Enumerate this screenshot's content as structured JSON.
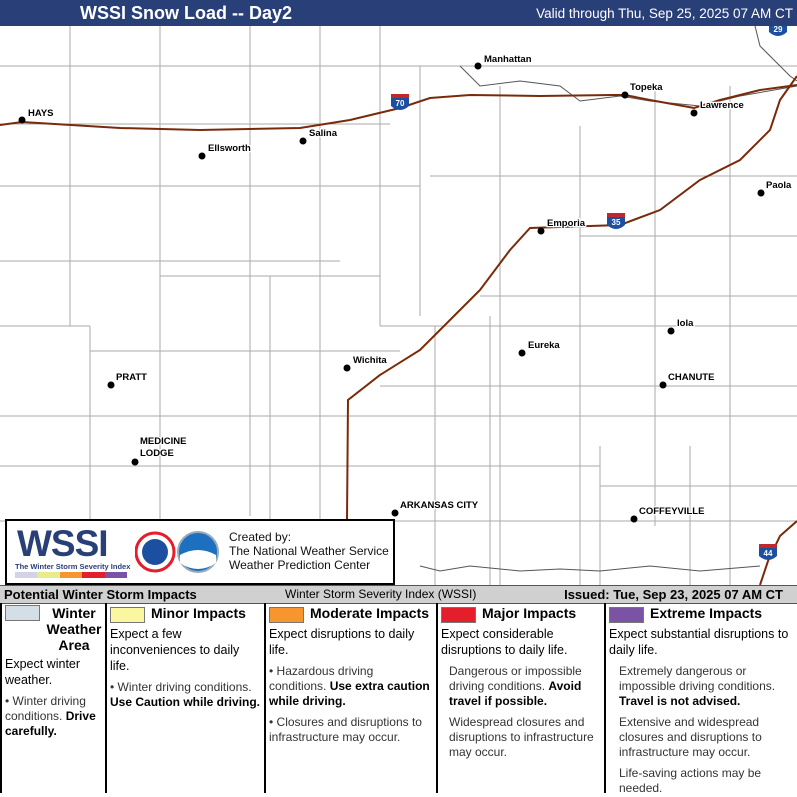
{
  "header": {
    "title": "WSSI Snow Load -- Day2",
    "valid": "Valid through Thu, Sep 25, 2025 07 AM CT"
  },
  "map": {
    "cities": [
      {
        "name": "HAYS"
      },
      {
        "name": "Manhattan"
      },
      {
        "name": "Topeka"
      },
      {
        "name": "Lawrence"
      },
      {
        "name": "Salina"
      },
      {
        "name": "Ellsworth"
      },
      {
        "name": "Paola"
      },
      {
        "name": "Emporia"
      },
      {
        "name": "Iola"
      },
      {
        "name": "Eureka"
      },
      {
        "name": "Wichita"
      },
      {
        "name": "PRATT"
      },
      {
        "name": "CHANUTE"
      },
      {
        "name": "MEDICINE"
      },
      {
        "name": "LODGE"
      },
      {
        "name": "ARKANSAS CITY"
      },
      {
        "name": "COFFEYVILLE"
      }
    ],
    "shields": [
      "70",
      "35",
      "29",
      "44"
    ],
    "highway_color": "#7a2a0a"
  },
  "logo": {
    "wssi": "WSSI",
    "subtitle": "The Winter Storm Severity Index",
    "created": "Created by:",
    "org1": "The National Weather Service",
    "org2": "Weather Prediction Center"
  },
  "legend_bar": {
    "title": "Potential Winter Storm Impacts",
    "index": "Winter Storm Severity Index (WSSI)",
    "issued": "Issued: Tue, Sep 23, 2025 07 AM CT"
  },
  "categories": [
    {
      "label": "Winter Weather Area",
      "color": "#d3dee6",
      "expect": "Expect winter weather.",
      "b1": "Winter driving conditions.",
      "b1b": "Drive carefully."
    },
    {
      "label": "Minor Impacts",
      "color": "#faf7a0",
      "expect": "Expect a few inconveniences to daily life.",
      "b1": "Winter driving conditions.",
      "b1b": "Use Caution while driving."
    },
    {
      "label": "Moderate Impacts",
      "color": "#f7962e",
      "expect": "Expect disruptions to daily life.",
      "b1": "Hazardous driving conditions.",
      "b1b": "Use extra caution while driving.",
      "b2": "Closures and disruptions to infrastructure may occur."
    },
    {
      "label": "Major Impacts",
      "color": "#e41e2b",
      "expect": "Expect considerable disruptions to daily life.",
      "b1": "Dangerous or impossible driving conditions.",
      "b1b": "Avoid travel if possible.",
      "b2": "Widespread closures and disruptions to infrastructure may occur."
    },
    {
      "label": "Extreme Impacts",
      "color": "#7a53a5",
      "expect": "Expect substantial disruptions to daily life.",
      "b1": "Extremely dangerous or impossible driving conditions.",
      "b1b": "Travel is not advised.",
      "b2": "Extensive and widespread closures and disruptions to infrastructure may occur.",
      "b3": "Life-saving actions may be needed."
    }
  ]
}
